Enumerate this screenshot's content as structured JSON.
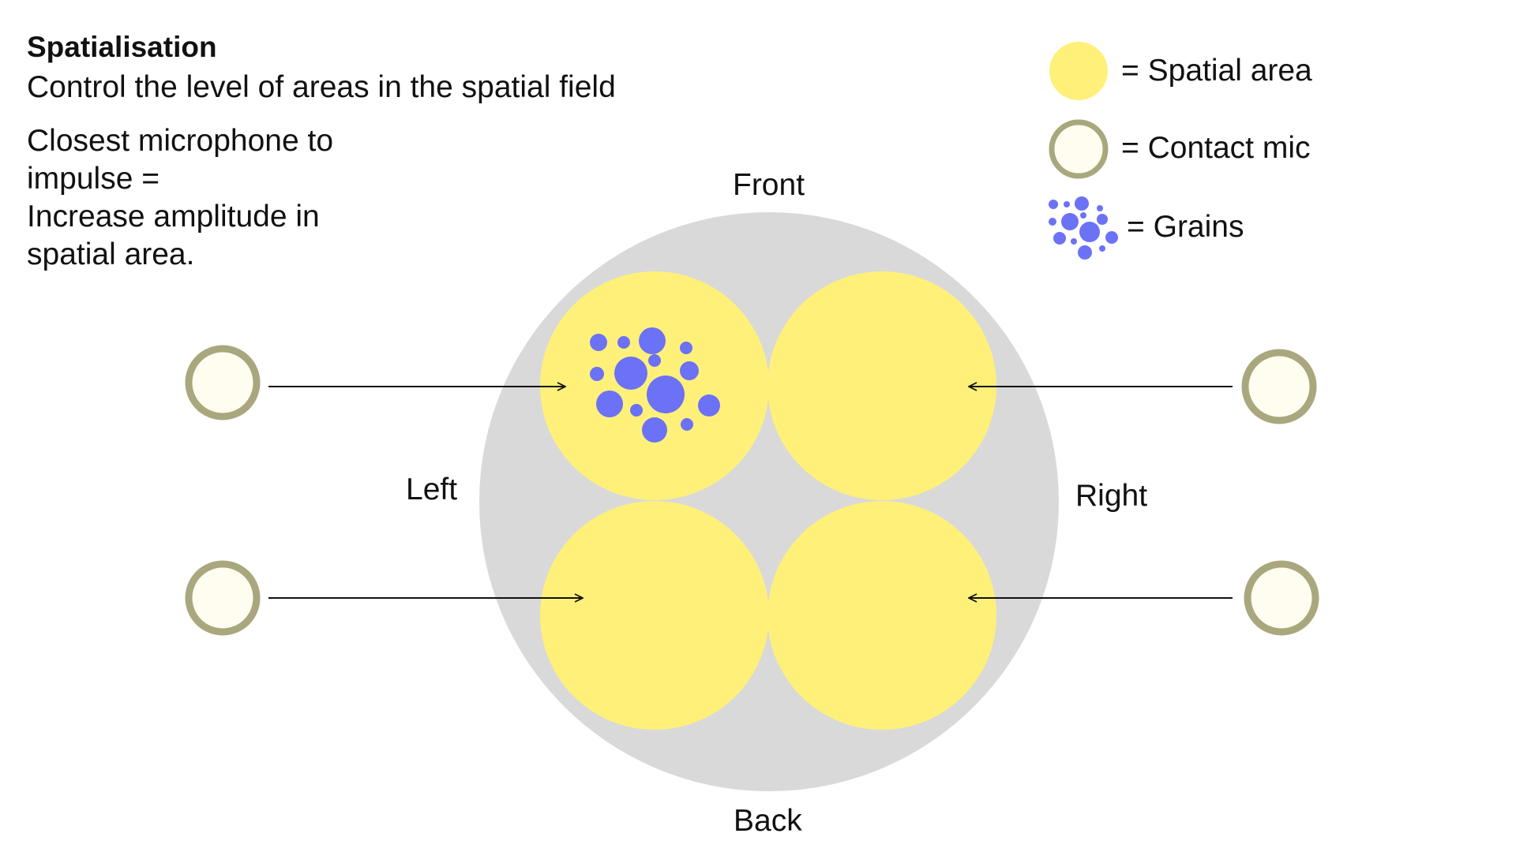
{
  "header": {
    "title": "Spatialisation",
    "subtitle": "Control the level of areas in the spatial field"
  },
  "note": {
    "lines": [
      "Closest microphone to",
      "impulse =",
      "Increase amplitude in",
      "spatial area."
    ]
  },
  "directions": {
    "front": "Front",
    "back": "Back",
    "left": "Left",
    "right": "Right"
  },
  "legend": {
    "spatial_area": "= Spatial area",
    "contact_mic": "= Contact mic",
    "grains": "= Grains"
  },
  "colors": {
    "field": "#d9d9d9",
    "spatial_area": "#fff07a",
    "mic_ring": "#a9a77e",
    "mic_fill": "#fffdf0",
    "grains": "#6b72f5",
    "arrow": "#111111"
  }
}
